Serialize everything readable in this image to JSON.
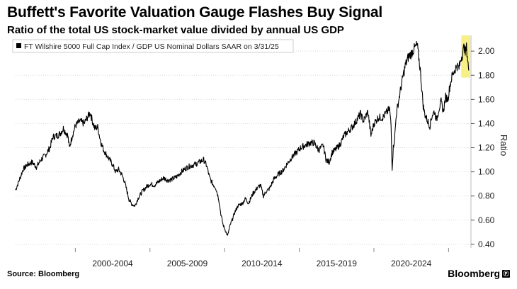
{
  "header": {
    "title": "Buffett's Favorite Valuation Gauge Flashes Buy Signal",
    "subtitle": "Ratio of the total US stock-market value divided by annual US GDP"
  },
  "footer": {
    "source": "Source: Bloomberg",
    "brand": "Bloomberg",
    "brand_mark": "Ⓟ"
  },
  "colors": {
    "line": "#000000",
    "highlight": "#f5ee7a",
    "grid": "#d9d9d9"
  },
  "chart_data": {
    "type": "line",
    "title": "Buffett's Favorite Valuation Gauge Flashes Buy Signal",
    "subtitle": "Ratio of the total US stock-market value divided by annual US GDP",
    "ylabel": "Ratio",
    "xlabel": "",
    "xlim": [
      1995.0,
      2025.5
    ],
    "ylim": [
      0.37,
      2.13
    ],
    "yticks": [
      0.4,
      0.6,
      0.8,
      1.0,
      1.2,
      1.4,
      1.6,
      1.8,
      2.0
    ],
    "ytick_labels": [
      "0.40",
      "0.60",
      "0.80",
      "1.00",
      "1.20",
      "1.40",
      "1.60",
      "1.80",
      "2.00"
    ],
    "xticks": [
      1999.0,
      2004.0,
      2009.0,
      2014.0,
      2019.0,
      2024.0
    ],
    "xtick_labels": [
      {
        "label": "2000-2004",
        "x": 2001.5
      },
      {
        "label": "2005-2009",
        "x": 2006.5
      },
      {
        "label": "2010-2014",
        "x": 2011.5
      },
      {
        "label": "2015-2019",
        "x": 2016.5
      },
      {
        "label": "2020-2024",
        "x": 2021.5
      }
    ],
    "grid": true,
    "legend": "top-left",
    "highlight": {
      "x_start": 2024.85,
      "x_end": 2025.45,
      "y_low": 1.78,
      "y_high": 2.13
    },
    "series": [
      {
        "name": "FT Wilshire 5000 Full Cap Index / GDP US Nominal Dollars SAAR on 3/31/25",
        "x": [
          1995.0,
          1995.3,
          1995.5,
          1995.8,
          1996.1,
          1996.4,
          1996.7,
          1997.0,
          1997.3,
          1997.5,
          1997.8,
          1998.0,
          1998.2,
          1998.5,
          1998.6,
          1998.8,
          1999.0,
          1999.3,
          1999.6,
          1999.8,
          2000.0,
          2000.15,
          2000.3,
          2000.5,
          2000.7,
          2000.9,
          2001.1,
          2001.3,
          2001.5,
          2001.7,
          2001.9,
          2002.1,
          2002.3,
          2002.5,
          2002.6,
          2002.8,
          2003.0,
          2003.2,
          2003.5,
          2003.8,
          2004.0,
          2004.3,
          2004.6,
          2004.9,
          2005.2,
          2005.5,
          2005.8,
          2006.1,
          2006.4,
          2006.7,
          2007.0,
          2007.3,
          2007.6,
          2007.8,
          2008.0,
          2008.2,
          2008.4,
          2008.6,
          2008.75,
          2008.9,
          2009.0,
          2009.1,
          2009.2,
          2009.35,
          2009.5,
          2009.7,
          2009.9,
          2010.2,
          2010.4,
          2010.6,
          2010.9,
          2011.2,
          2011.4,
          2011.6,
          2011.8,
          2012.0,
          2012.3,
          2012.6,
          2012.9,
          2013.2,
          2013.5,
          2013.8,
          2014.1,
          2014.4,
          2014.7,
          2015.0,
          2015.3,
          2015.6,
          2015.8,
          2016.0,
          2016.2,
          2016.4,
          2016.7,
          2017.0,
          2017.3,
          2017.6,
          2017.9,
          2018.1,
          2018.3,
          2018.6,
          2018.8,
          2019.0,
          2019.3,
          2019.6,
          2019.9,
          2020.05,
          2020.15,
          2020.22,
          2020.3,
          2020.4,
          2020.5,
          2020.7,
          2020.9,
          2021.1,
          2021.3,
          2021.5,
          2021.7,
          2021.9,
          2022.0,
          2022.1,
          2022.2,
          2022.3,
          2022.4,
          2022.5,
          2022.6,
          2022.75,
          2022.9,
          2023.05,
          2023.2,
          2023.35,
          2023.5,
          2023.65,
          2023.8,
          2023.95,
          2024.1,
          2024.25,
          2024.4,
          2024.55,
          2024.7,
          2024.85,
          2024.95,
          2025.05,
          2025.12,
          2025.2,
          2025.28,
          2025.35
        ],
        "y": [
          0.85,
          0.95,
          1.02,
          1.06,
          1.08,
          1.04,
          1.1,
          1.14,
          1.2,
          1.29,
          1.3,
          1.32,
          1.36,
          1.3,
          1.2,
          1.3,
          1.38,
          1.42,
          1.4,
          1.45,
          1.49,
          1.42,
          1.36,
          1.37,
          1.25,
          1.18,
          1.14,
          1.1,
          1.06,
          1.0,
          1.02,
          0.98,
          0.92,
          0.82,
          0.77,
          0.73,
          0.72,
          0.78,
          0.84,
          0.88,
          0.9,
          0.89,
          0.92,
          0.95,
          0.93,
          0.94,
          0.96,
          1.0,
          1.03,
          1.05,
          1.06,
          1.08,
          1.1,
          1.05,
          0.95,
          0.9,
          0.87,
          0.78,
          0.65,
          0.56,
          0.53,
          0.5,
          0.47,
          0.55,
          0.6,
          0.67,
          0.72,
          0.74,
          0.78,
          0.74,
          0.82,
          0.87,
          0.89,
          0.8,
          0.84,
          0.86,
          0.94,
          0.98,
          1.01,
          1.07,
          1.12,
          1.16,
          1.2,
          1.22,
          1.24,
          1.24,
          1.18,
          1.22,
          1.1,
          1.08,
          1.16,
          1.18,
          1.22,
          1.3,
          1.34,
          1.38,
          1.44,
          1.48,
          1.42,
          1.5,
          1.3,
          1.4,
          1.45,
          1.45,
          1.5,
          1.52,
          1.38,
          1.03,
          1.2,
          1.3,
          1.48,
          1.62,
          1.76,
          1.88,
          1.95,
          1.98,
          2.02,
          2.05,
          1.95,
          1.85,
          1.7,
          1.55,
          1.48,
          1.45,
          1.42,
          1.38,
          1.47,
          1.5,
          1.43,
          1.52,
          1.58,
          1.5,
          1.62,
          1.6,
          1.72,
          1.8,
          1.84,
          1.88,
          1.86,
          1.95,
          1.98,
          2.05,
          1.98,
          2.03,
          1.93,
          1.84
        ]
      }
    ]
  }
}
